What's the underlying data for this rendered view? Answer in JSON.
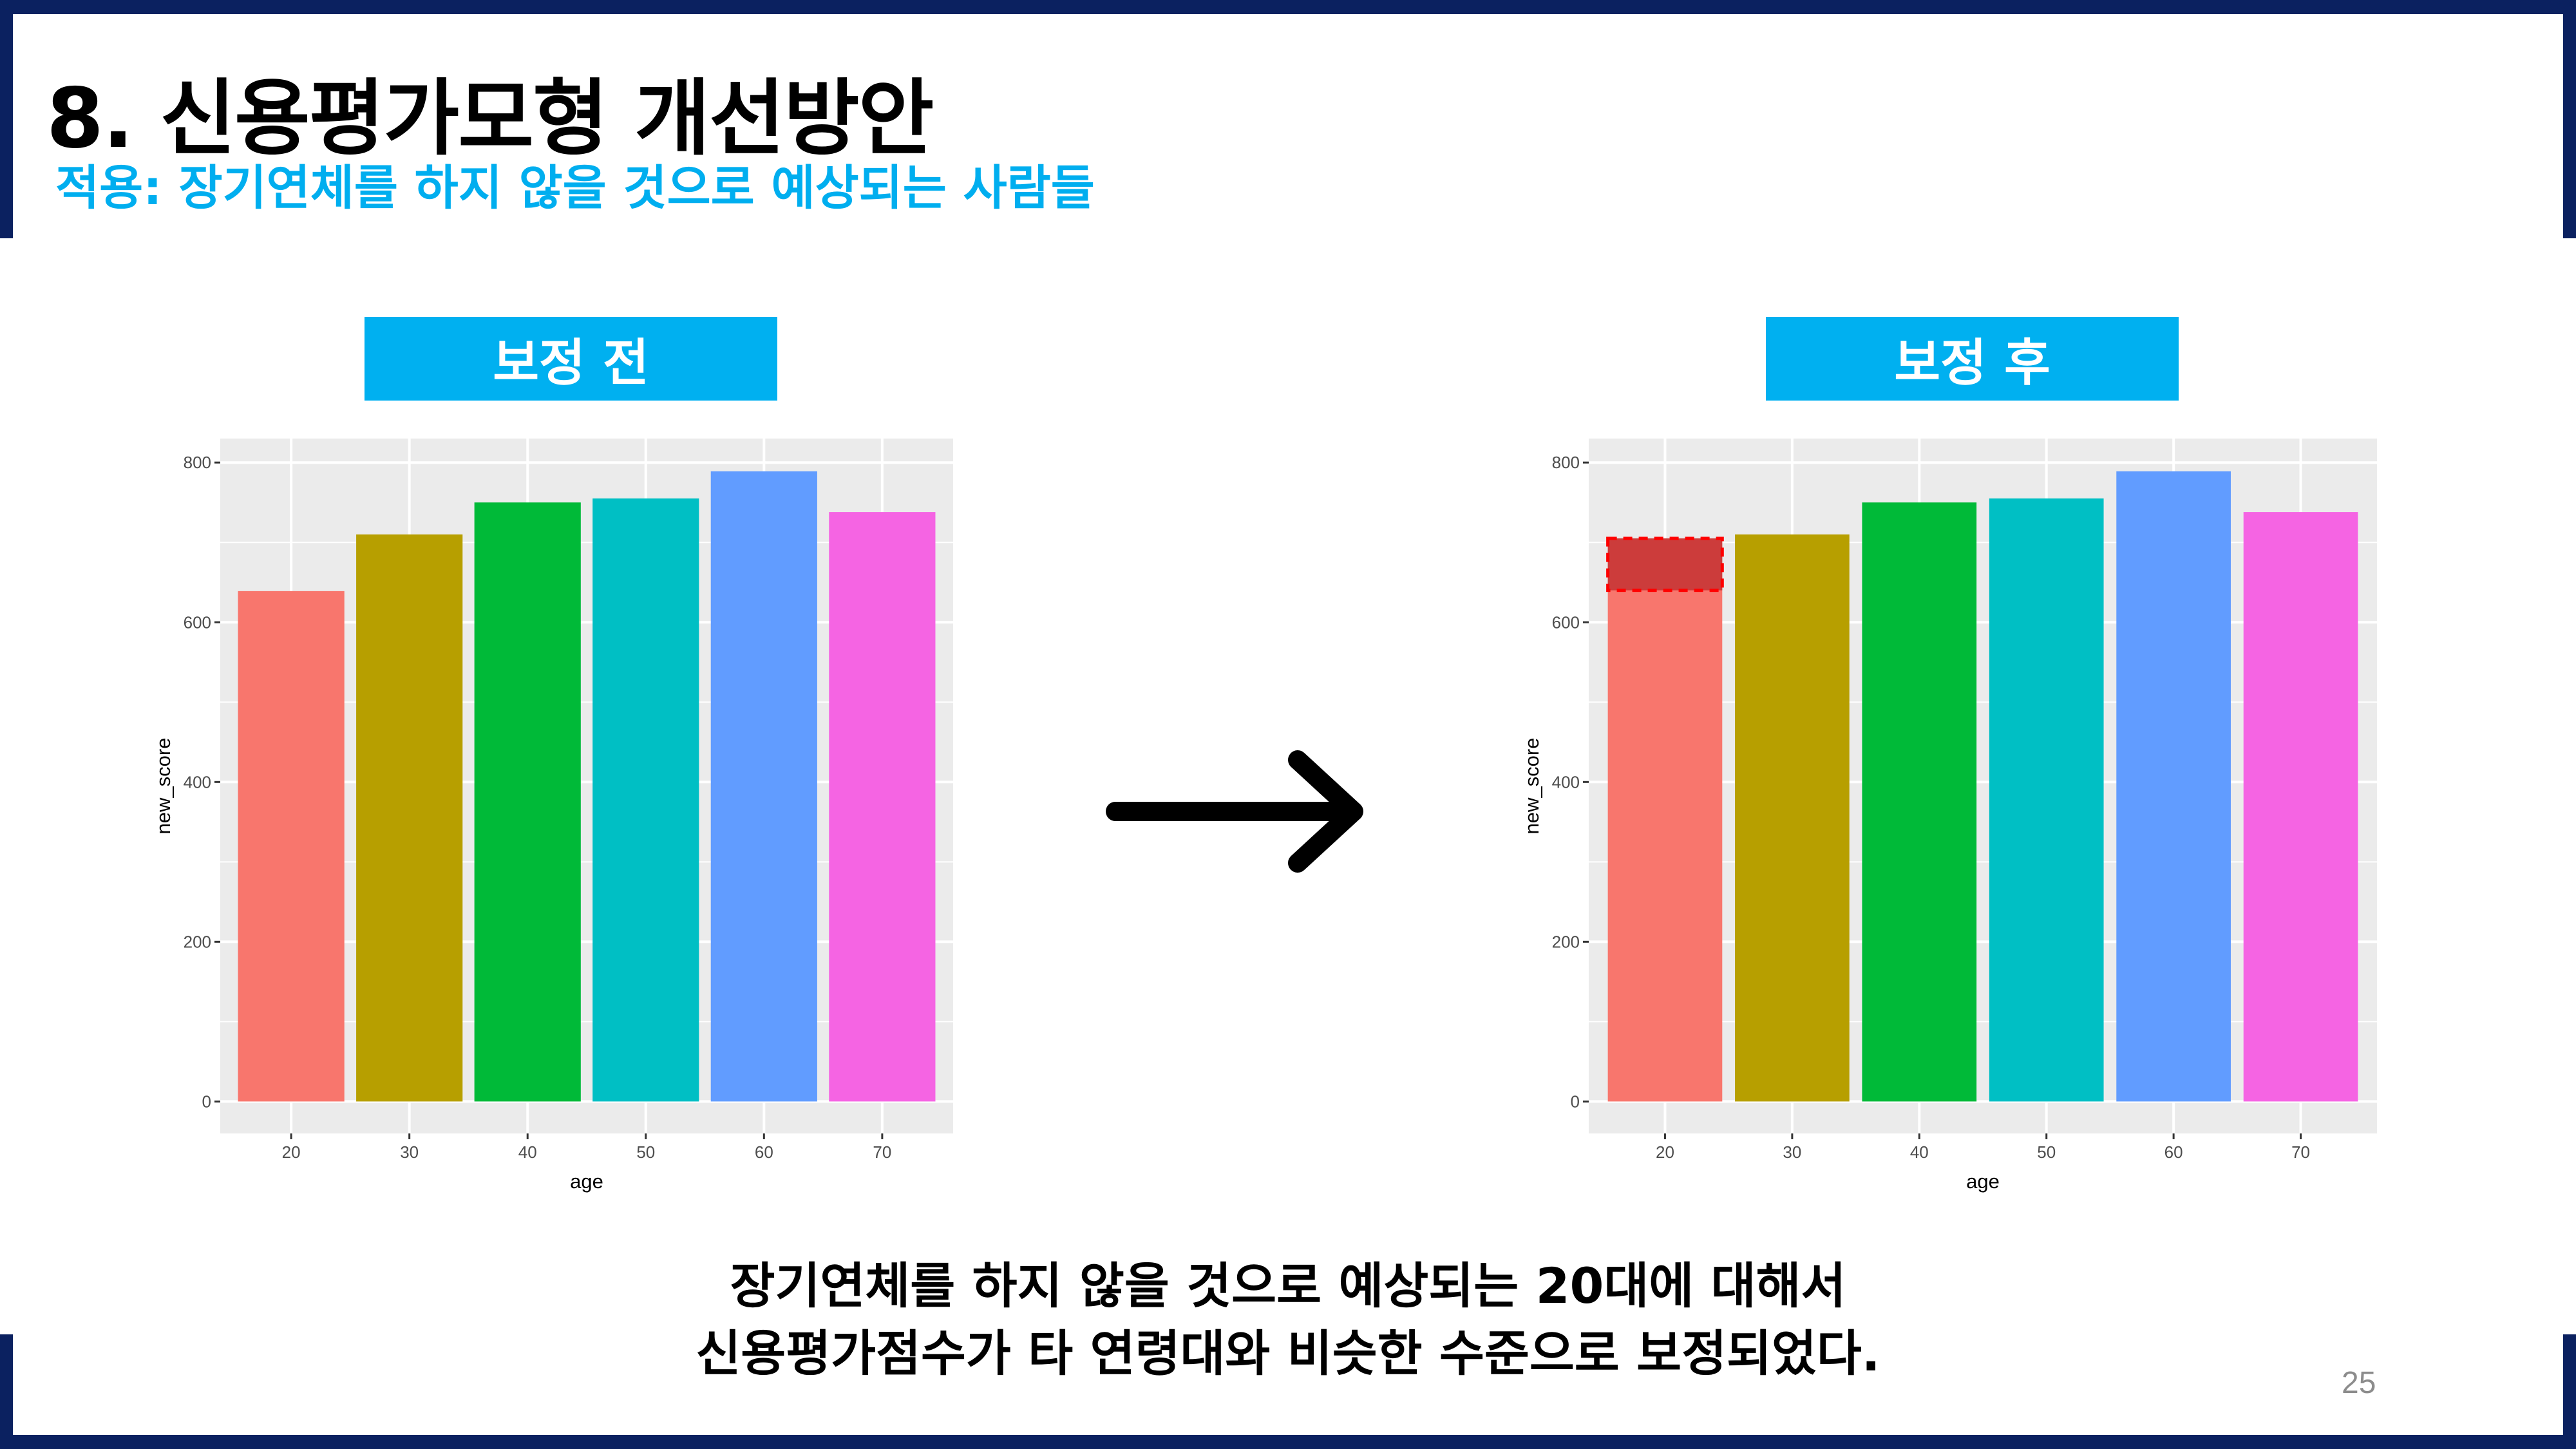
{
  "slide": {
    "title": "8. 신용평가모형 개선방안",
    "subtitle": "적용: 장기연체를 하지 않을 것으로 예상되는 사람들",
    "label_before": "보정 전",
    "label_after": "보정 후",
    "conclusion_line1": "장기연체를 하지 않을 것으로 예상되는 20대에 대해서",
    "conclusion_line2": "신용평가점수가 타 연령대와 비슷한 수준으로 보정되었다.",
    "page_number": "25",
    "colors": {
      "navy": "#0B2160",
      "accent": "#00B0F0",
      "subtitle": "#00AEEF",
      "highlight": "#C83737",
      "highlight_border": "#FF0000"
    },
    "arrow_icon": "arrow-right-icon"
  },
  "chart_data": [
    {
      "type": "bar",
      "xlabel": "age",
      "ylabel": "new_score",
      "categories": [
        "20",
        "30",
        "40",
        "50",
        "60",
        "70"
      ],
      "values": [
        639,
        710,
        750,
        755,
        789,
        738
      ],
      "colors": [
        "#F8766D",
        "#B79F00",
        "#00BA38",
        "#00BFC4",
        "#619CFF",
        "#F564E3"
      ],
      "yticks": [
        "0",
        "200",
        "400",
        "600",
        "800"
      ],
      "ylim": [
        -40,
        830
      ],
      "grid": true
    },
    {
      "type": "bar",
      "xlabel": "age",
      "ylabel": "new_score",
      "categories": [
        "20",
        "30",
        "40",
        "50",
        "60",
        "70"
      ],
      "values": [
        705,
        710,
        750,
        755,
        789,
        738
      ],
      "colors": [
        "#F8766D",
        "#B79F00",
        "#00BA38",
        "#00BFC4",
        "#619CFF",
        "#F564E3"
      ],
      "yticks": [
        "0",
        "200",
        "400",
        "600",
        "800"
      ],
      "ylim": [
        -40,
        830
      ],
      "grid": true,
      "highlight": {
        "category": "20",
        "from": 640,
        "to": 705
      }
    }
  ]
}
